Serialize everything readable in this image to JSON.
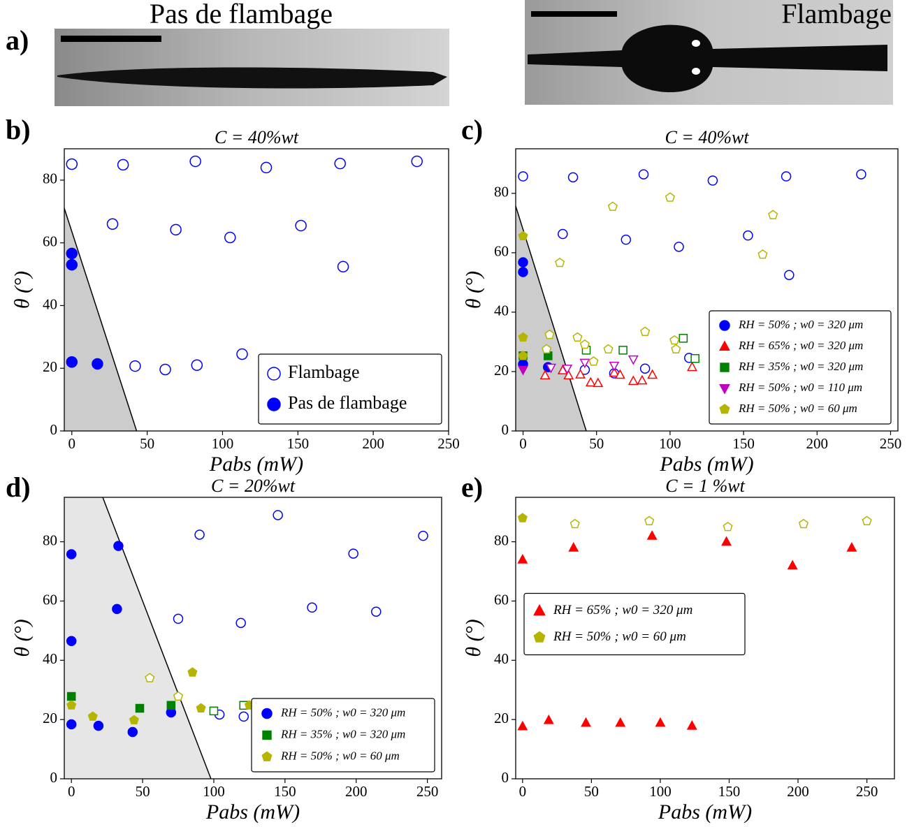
{
  "images": {
    "label": "a)",
    "left_title": "Pas de flambage",
    "right_title": "Flambage"
  },
  "chart_data": [
    {
      "type": "scatter",
      "label": "b)",
      "title": "C = 40%wt",
      "xlabel": "Pabs (mW)",
      "ylabel": "θ (°)",
      "xlim": [
        -5,
        250
      ],
      "ylim": [
        0,
        90
      ],
      "xticks": [
        0,
        50,
        100,
        150,
        200,
        250
      ],
      "yticks": [
        0,
        20,
        40,
        60,
        80
      ],
      "legend_loc": "lower right",
      "region": {
        "x": [
          -5,
          43
        ],
        "y": [
          71,
          0
        ],
        "color": "#cccccc"
      },
      "series": [
        {
          "name": "Flambage",
          "color": "#0000ff",
          "marker": "circle",
          "filled": false,
          "x": [
            0,
            34,
            82,
            129,
            178,
            229,
            27,
            69,
            105,
            152,
            180,
            42,
            62,
            83,
            113
          ],
          "values": [
            85.1,
            84.9,
            86,
            84,
            85.3,
            86,
            66,
            64.2,
            61.7,
            65.5,
            52.4,
            20.7,
            19.6,
            21,
            24.5
          ]
        },
        {
          "name": "Pas de flambage",
          "color": "#0000ff",
          "marker": "circle",
          "filled": true,
          "x": [
            0,
            0,
            0,
            17
          ],
          "values": [
            56.6,
            53,
            22,
            21.4
          ]
        }
      ]
    },
    {
      "type": "scatter",
      "label": "c)",
      "title": "C = 40%wt",
      "xlabel": "Pabs (mW)",
      "ylabel": "θ (°)",
      "xlim": [
        -5,
        255
      ],
      "ylim": [
        0,
        95
      ],
      "xticks": [
        0,
        50,
        100,
        150,
        200,
        250
      ],
      "yticks": [
        0,
        20,
        40,
        60,
        80
      ],
      "legend_loc": "lower right",
      "region": {
        "x": [
          -5,
          43
        ],
        "y": [
          75.7,
          0
        ],
        "color": "#cccccc"
      },
      "series": [
        {
          "name": "RH = 50% ; w0 = 320 μm",
          "color": "#0000ff",
          "marker": "circle",
          "x": [
            0,
            34,
            82,
            129,
            179,
            230,
            27,
            70,
            106,
            153,
            181,
            42,
            62,
            83,
            113,
            0,
            0,
            0,
            17
          ],
          "values": [
            85.7,
            85.4,
            86.4,
            84.3,
            85.7,
            86.4,
            66.3,
            64.4,
            62,
            65.8,
            52.5,
            20.6,
            19.4,
            21,
            24.6,
            56.8,
            53.5,
            22.5,
            21.5
          ],
          "filled": [
            false,
            false,
            false,
            false,
            false,
            false,
            false,
            false,
            false,
            false,
            false,
            false,
            false,
            false,
            false,
            true,
            true,
            true,
            true
          ]
        },
        {
          "name": "RH = 65% ; w0 = 320 μm",
          "color": "#ff0000",
          "marker": "triangle-up",
          "x": [
            15,
            27,
            31,
            39,
            46,
            51,
            62,
            66,
            75,
            81,
            88,
            115
          ],
          "values": [
            18.7,
            20.4,
            18.7,
            19,
            16.3,
            16.1,
            19.6,
            18.9,
            16.8,
            17,
            18.9,
            21.5
          ],
          "filled": [
            false,
            false,
            false,
            false,
            false,
            false,
            false,
            false,
            false,
            false,
            false,
            false
          ]
        },
        {
          "name": "RH = 35% ; w0 = 320 μm",
          "color": "#008000",
          "marker": "square",
          "x": [
            0,
            17,
            43,
            68,
            109,
            117
          ],
          "values": [
            25.3,
            25.3,
            27.2,
            27.2,
            31.2,
            24.4
          ],
          "filled": [
            true,
            true,
            false,
            false,
            false,
            false
          ]
        },
        {
          "name": "RH = 50% ; w0 = 110 μm",
          "color": "#c000c0",
          "marker": "triangle-down",
          "x": [
            0,
            19,
            30,
            42,
            62,
            75
          ],
          "values": [
            20.6,
            21.3,
            21,
            23,
            22,
            24.1
          ],
          "filled": [
            true,
            false,
            false,
            false,
            false,
            false
          ]
        },
        {
          "name": "RH = 50% ; w0 = 60 μm",
          "color": "#b5b500",
          "marker": "pentagon",
          "x": [
            0,
            0,
            0,
            61,
            100,
            170,
            163,
            25,
            18,
            16,
            37,
            42,
            48,
            58,
            83,
            103,
            104
          ],
          "values": [
            65.6,
            31.5,
            25.3,
            75.5,
            78.6,
            72.7,
            59.4,
            56.6,
            32.4,
            27.5,
            31.5,
            29.1,
            23.4,
            27.5,
            33.4,
            30.5,
            27.5
          ],
          "filled": [
            true,
            true,
            true,
            false,
            false,
            false,
            false,
            false,
            false,
            false,
            false,
            false,
            false,
            false,
            false,
            false,
            false
          ]
        }
      ]
    },
    {
      "type": "scatter",
      "label": "d)",
      "title": "C = 20%wt",
      "xlabel": "Pabs (mW)",
      "ylabel": "θ (°)",
      "xlim": [
        -5,
        260
      ],
      "ylim": [
        0,
        95
      ],
      "xticks": [
        0,
        50,
        100,
        150,
        200,
        250
      ],
      "yticks": [
        0,
        20,
        40,
        60,
        80
      ],
      "legend_loc": "lower right",
      "region": {
        "x": [
          22,
          98
        ],
        "y": [
          95,
          0
        ],
        "color": "#e6e6e6"
      },
      "series": [
        {
          "name": "RH = 50% ; w0 = 320 μm",
          "color": "#0000ff",
          "marker": "circle",
          "x": [
            90,
            145,
            198,
            247,
            75,
            119,
            169,
            214,
            104,
            121,
            0,
            33,
            32,
            0,
            0,
            19,
            43,
            70
          ],
          "values": [
            82.4,
            89,
            76,
            82,
            54,
            52.6,
            57.8,
            56.4,
            21.7,
            21,
            75.8,
            78.6,
            57.3,
            46.5,
            18.4,
            17.9,
            15.8,
            22.4
          ],
          "filled": [
            false,
            false,
            false,
            false,
            false,
            false,
            false,
            false,
            false,
            false,
            true,
            true,
            true,
            true,
            true,
            true,
            true,
            true
          ]
        },
        {
          "name": "RH = 35% ; w0 = 320 μm",
          "color": "#008000",
          "marker": "square",
          "x": [
            0,
            48,
            70,
            100,
            121
          ],
          "values": [
            27.8,
            23.8,
            24.8,
            22.9,
            24.8
          ],
          "filled": [
            true,
            true,
            true,
            false,
            false
          ]
        },
        {
          "name": "RH = 50% ; w0 = 60 μm",
          "color": "#b5b500",
          "marker": "pentagon",
          "x": [
            0,
            15,
            44,
            85,
            91,
            125,
            55,
            75
          ],
          "values": [
            24.8,
            21,
            19.8,
            35.9,
            23.8,
            24.8,
            34,
            27.8
          ],
          "filled": [
            true,
            true,
            true,
            true,
            true,
            true,
            false,
            false
          ]
        }
      ]
    },
    {
      "type": "scatter",
      "label": "e)",
      "title": "C = 1 %wt",
      "xlabel": "Pabs (mW)",
      "ylabel": "θ (°)",
      "xlim": [
        -5,
        270
      ],
      "ylim": [
        0,
        95
      ],
      "xticks": [
        0,
        50,
        100,
        150,
        200,
        250
      ],
      "yticks": [
        0,
        20,
        40,
        60,
        80
      ],
      "legend_loc": "center left",
      "series": [
        {
          "name": "RH = 65% ; w0 = 320 μm",
          "color": "#ff0000",
          "marker": "triangle-up",
          "x": [
            0,
            37,
            94,
            148,
            196,
            239,
            0,
            19,
            46,
            71,
            100,
            123
          ],
          "values": [
            74,
            78,
            82,
            80,
            72,
            78,
            17.7,
            19.8,
            18.9,
            18.9,
            18.9,
            17.9
          ],
          "filled": [
            true,
            true,
            true,
            true,
            true,
            true,
            true,
            true,
            true,
            true,
            true,
            true
          ]
        },
        {
          "name": "RH = 50% ; w0 = 60 μm",
          "color": "#b5b500",
          "marker": "pentagon",
          "x": [
            0,
            38,
            92,
            149,
            204,
            250
          ],
          "values": [
            88,
            86,
            87,
            85,
            86,
            87
          ],
          "filled": [
            true,
            false,
            false,
            false,
            false,
            false
          ]
        }
      ]
    }
  ]
}
